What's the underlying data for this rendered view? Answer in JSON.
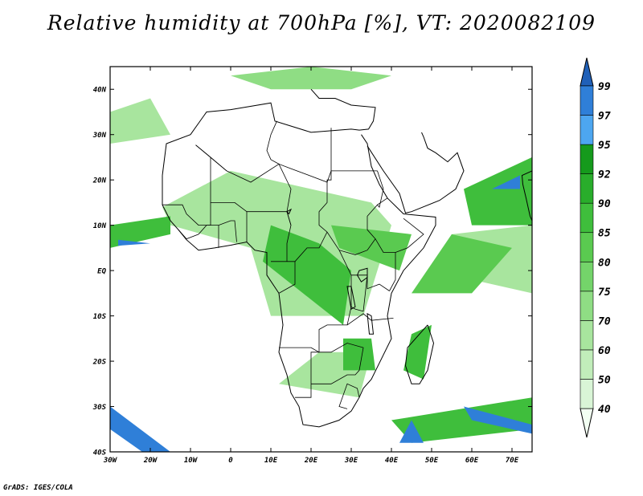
{
  "title": "Relative humidity at 700hPa [%], VT: 2020082109",
  "credit": "GrADS: IGES/COLA",
  "map": {
    "lon_range": [
      -30,
      75
    ],
    "lat_range": [
      -40,
      45
    ],
    "lat_ticks": [
      {
        "value": 40,
        "label": "40N"
      },
      {
        "value": 30,
        "label": "30N"
      },
      {
        "value": 20,
        "label": "20N"
      },
      {
        "value": 10,
        "label": "10N"
      },
      {
        "value": 0,
        "label": "EQ"
      },
      {
        "value": -10,
        "label": "10S"
      },
      {
        "value": -20,
        "label": "20S"
      },
      {
        "value": -30,
        "label": "30S"
      },
      {
        "value": -40,
        "label": "40S"
      }
    ],
    "lon_ticks": [
      {
        "value": -30,
        "label": "30W"
      },
      {
        "value": -20,
        "label": "20W"
      },
      {
        "value": -10,
        "label": "10W"
      },
      {
        "value": 0,
        "label": "0"
      },
      {
        "value": 10,
        "label": "10E"
      },
      {
        "value": 20,
        "label": "20E"
      },
      {
        "value": 30,
        "label": "30E"
      },
      {
        "value": 40,
        "label": "40E"
      },
      {
        "value": 50,
        "label": "50E"
      },
      {
        "value": 60,
        "label": "60E"
      },
      {
        "value": 70,
        "label": "70E"
      }
    ]
  },
  "colorbar": {
    "levels": [
      "40",
      "50",
      "60",
      "70",
      "75",
      "80",
      "85",
      "90",
      "92",
      "95",
      "97",
      "99"
    ],
    "colors": [
      "#f2fff2",
      "#d9f5d6",
      "#c1edba",
      "#a8e59e",
      "#8fdd84",
      "#74d46a",
      "#5aca50",
      "#3fbe3c",
      "#29ad2b",
      "#159a1c",
      "#4da6f0",
      "#2f7fd8",
      "#2060b8"
    ]
  },
  "humid_areas": [
    {
      "level": "60",
      "points": [
        [
          40,
          10
        ],
        [
          33,
          -10
        ],
        [
          10,
          -10
        ],
        [
          5,
          5
        ],
        [
          -15,
          10
        ],
        [
          -17,
          14
        ],
        [
          0,
          22
        ],
        [
          20,
          18
        ],
        [
          35,
          15
        ]
      ]
    },
    {
      "level": "60",
      "points": [
        [
          12,
          -25
        ],
        [
          32,
          -28
        ],
        [
          35,
          -18
        ],
        [
          22,
          -18
        ]
      ]
    },
    {
      "level": "60",
      "points": [
        [
          50,
          0
        ],
        [
          75,
          -5
        ],
        [
          75,
          10
        ],
        [
          55,
          8
        ]
      ]
    },
    {
      "level": "60",
      "points": [
        [
          -30,
          35
        ],
        [
          -20,
          38
        ],
        [
          -15,
          30
        ],
        [
          -30,
          28
        ]
      ]
    },
    {
      "level": "70",
      "points": [
        [
          0,
          43
        ],
        [
          20,
          45
        ],
        [
          40,
          43
        ],
        [
          30,
          40
        ],
        [
          10,
          40
        ]
      ]
    },
    {
      "level": "80",
      "points": [
        [
          45,
          -5
        ],
        [
          60,
          -5
        ],
        [
          70,
          5
        ],
        [
          55,
          8
        ]
      ]
    },
    {
      "level": "80",
      "points": [
        [
          25,
          10
        ],
        [
          45,
          8
        ],
        [
          42,
          0
        ],
        [
          27,
          5
        ]
      ]
    },
    {
      "level": "85",
      "points": [
        [
          10,
          10
        ],
        [
          22,
          6
        ],
        [
          30,
          0
        ],
        [
          28,
          -12
        ],
        [
          18,
          -5
        ],
        [
          8,
          2
        ]
      ]
    },
    {
      "level": "85",
      "points": [
        [
          -30,
          5
        ],
        [
          -15,
          8
        ],
        [
          -15,
          12
        ],
        [
          -30,
          10
        ]
      ]
    },
    {
      "level": "85",
      "points": [
        [
          28,
          -15
        ],
        [
          35,
          -15
        ],
        [
          36,
          -22
        ],
        [
          28,
          -22
        ]
      ]
    },
    {
      "level": "85",
      "points": [
        [
          45,
          -14
        ],
        [
          50,
          -12
        ],
        [
          48,
          -24
        ],
        [
          43,
          -22
        ]
      ]
    },
    {
      "level": "85",
      "points": [
        [
          58,
          18
        ],
        [
          75,
          25
        ],
        [
          75,
          10
        ],
        [
          60,
          10
        ]
      ]
    },
    {
      "level": "85",
      "points": [
        [
          40,
          -33
        ],
        [
          75,
          -28
        ],
        [
          75,
          -35
        ],
        [
          45,
          -38
        ]
      ]
    },
    {
      "level": "97",
      "points": [
        [
          -30,
          -30
        ],
        [
          -15,
          -40
        ],
        [
          -22,
          -40
        ],
        [
          -30,
          -35
        ]
      ]
    },
    {
      "level": "97",
      "points": [
        [
          58,
          -30
        ],
        [
          75,
          -34
        ],
        [
          75,
          -36
        ],
        [
          60,
          -33
        ]
      ]
    },
    {
      "level": "97",
      "points": [
        [
          65,
          18
        ],
        [
          72,
          21
        ],
        [
          72,
          18
        ]
      ]
    },
    {
      "level": "97",
      "points": [
        [
          -28,
          5.5
        ],
        [
          -20,
          6
        ],
        [
          -28,
          6.8
        ]
      ]
    },
    {
      "level": "97",
      "points": [
        [
          42,
          -38
        ],
        [
          45,
          -33
        ],
        [
          48,
          -38
        ]
      ]
    }
  ],
  "coastlines": [
    [
      [
        -17,
        21
      ],
      [
        -16,
        28
      ],
      [
        -10,
        30
      ],
      [
        -6,
        35
      ],
      [
        0,
        35.5
      ],
      [
        10,
        37
      ],
      [
        11,
        33
      ],
      [
        20,
        30.5
      ],
      [
        30,
        31.2
      ],
      [
        32,
        31
      ],
      [
        34.3,
        31.2
      ],
      [
        35.5,
        33
      ],
      [
        36,
        36
      ],
      [
        30,
        36.5
      ],
      [
        26,
        38
      ],
      [
        22,
        38
      ],
      [
        20,
        40
      ]
    ],
    [
      [
        32.5,
        30
      ],
      [
        34,
        28
      ],
      [
        35,
        23
      ],
      [
        37,
        19
      ],
      [
        39,
        16
      ],
      [
        43,
        12.5
      ],
      [
        51,
        11.8
      ],
      [
        51,
        10
      ],
      [
        48,
        5
      ],
      [
        43,
        0
      ],
      [
        40,
        -5
      ],
      [
        39,
        -10
      ],
      [
        40,
        -15
      ],
      [
        35,
        -24
      ],
      [
        33,
        -26
      ],
      [
        32,
        -28
      ],
      [
        30,
        -31
      ],
      [
        27,
        -33
      ],
      [
        22,
        -34.5
      ],
      [
        18,
        -34
      ],
      [
        17,
        -30
      ],
      [
        15,
        -27
      ],
      [
        14,
        -23
      ],
      [
        12,
        -18
      ],
      [
        13,
        -12
      ],
      [
        12,
        -5
      ],
      [
        9,
        -1
      ],
      [
        9,
        4
      ],
      [
        6,
        4.5
      ],
      [
        4,
        6.3
      ],
      [
        0,
        5.6
      ],
      [
        -4,
        5
      ],
      [
        -8,
        4.5
      ],
      [
        -11,
        6.8
      ],
      [
        -13,
        9
      ],
      [
        -15,
        11
      ],
      [
        -17,
        14.5
      ],
      [
        -17,
        21
      ]
    ],
    [
      [
        34,
        27.5
      ],
      [
        38,
        22
      ],
      [
        42,
        17
      ],
      [
        43.5,
        12.7
      ],
      [
        45,
        13
      ],
      [
        52,
        15.5
      ],
      [
        56,
        18
      ],
      [
        58,
        22
      ],
      [
        56.4,
        26
      ],
      [
        54,
        24
      ],
      [
        51,
        26
      ],
      [
        49,
        27
      ],
      [
        48,
        29.5
      ],
      [
        47.5,
        30.5
      ]
    ],
    [
      [
        49,
        -12
      ],
      [
        50.5,
        -16
      ],
      [
        49,
        -22
      ],
      [
        47,
        -25
      ],
      [
        45,
        -25
      ],
      [
        43.5,
        -21
      ],
      [
        44,
        -17
      ],
      [
        47,
        -14
      ],
      [
        49,
        -12
      ]
    ],
    [
      [
        75,
        22
      ],
      [
        72.5,
        21
      ],
      [
        72.7,
        19
      ],
      [
        73.5,
        16
      ],
      [
        74.5,
        12
      ],
      [
        75,
        11
      ]
    ]
  ],
  "borders": [
    [
      [
        -8.7,
        27.7
      ],
      [
        -1,
        22
      ],
      [
        5,
        19.5
      ],
      [
        12,
        23.5
      ],
      [
        15,
        22.5
      ],
      [
        24,
        19.5
      ],
      [
        24,
        20
      ],
      [
        25,
        20
      ],
      [
        25,
        22
      ],
      [
        36.5,
        22
      ]
    ],
    [
      [
        11.5,
        33
      ],
      [
        10,
        30
      ],
      [
        9,
        26.5
      ],
      [
        10,
        24.5
      ],
      [
        12,
        23.5
      ]
    ],
    [
      [
        25,
        31.5
      ],
      [
        25,
        22
      ],
      [
        24,
        19.5
      ],
      [
        24,
        15
      ],
      [
        22,
        13
      ],
      [
        22,
        10
      ],
      [
        24,
        8.5
      ],
      [
        27,
        4.5
      ],
      [
        31,
        3.5
      ],
      [
        34,
        4.5
      ],
      [
        36,
        7
      ],
      [
        38,
        4
      ],
      [
        41,
        4
      ],
      [
        41,
        -2
      ],
      [
        39.5,
        -4.5
      ]
    ],
    [
      [
        24,
        8.5
      ],
      [
        22,
        5
      ],
      [
        19,
        5
      ],
      [
        16,
        2
      ],
      [
        16,
        -3
      ],
      [
        12,
        -5
      ]
    ],
    [
      [
        16,
        2
      ],
      [
        14,
        2
      ],
      [
        11.5,
        2
      ],
      [
        10,
        2
      ]
    ],
    [
      [
        14,
        2
      ],
      [
        14,
        6
      ],
      [
        15,
        10
      ],
      [
        14,
        13
      ],
      [
        15,
        18
      ],
      [
        12,
        23.5
      ]
    ],
    [
      [
        4,
        6.3
      ],
      [
        4,
        13
      ],
      [
        14,
        13
      ],
      [
        15,
        10
      ]
    ],
    [
      [
        4,
        13
      ],
      [
        1,
        15
      ],
      [
        -5,
        15
      ],
      [
        -5,
        10
      ],
      [
        -8,
        10
      ],
      [
        -11,
        12.5
      ],
      [
        -12,
        14.5
      ],
      [
        -17,
        14.5
      ]
    ],
    [
      [
        -5,
        15
      ],
      [
        -5,
        25
      ],
      [
        -8.7,
        27.7
      ]
    ],
    [
      [
        -1,
        22
      ],
      [
        -5,
        25
      ]
    ],
    [
      [
        27,
        4.5
      ],
      [
        30,
        -1
      ],
      [
        30,
        -8
      ],
      [
        29,
        -12
      ],
      [
        24,
        -12
      ],
      [
        22,
        -13
      ],
      [
        22,
        -18
      ],
      [
        20,
        -18
      ],
      [
        20,
        -22
      ],
      [
        20,
        -28
      ],
      [
        16,
        -28
      ]
    ],
    [
      [
        12,
        -17
      ],
      [
        20,
        -17
      ],
      [
        22,
        -18
      ],
      [
        25,
        -18
      ],
      [
        29,
        -16
      ],
      [
        33,
        -17
      ],
      [
        32,
        -22
      ],
      [
        31,
        -23
      ],
      [
        29,
        -23
      ],
      [
        25,
        -25
      ],
      [
        20,
        -25
      ]
    ],
    [
      [
        30,
        -1
      ],
      [
        34,
        -1
      ],
      [
        34,
        -4
      ],
      [
        37,
        -3
      ],
      [
        39.5,
        -4.5
      ]
    ],
    [
      [
        29,
        -12
      ],
      [
        33,
        -9.5
      ],
      [
        35,
        -11
      ],
      [
        40.5,
        -10.5
      ]
    ],
    [
      [
        34,
        -1
      ],
      [
        33,
        -9
      ],
      [
        31,
        -8.5
      ],
      [
        30,
        -8
      ]
    ],
    [
      [
        36,
        7
      ],
      [
        34,
        9
      ],
      [
        34,
        12
      ],
      [
        36.5,
        14.5
      ],
      [
        39,
        16
      ]
    ],
    [
      [
        36.5,
        22
      ],
      [
        38,
        18
      ],
      [
        37,
        14
      ],
      [
        36.5,
        14.5
      ]
    ],
    [
      [
        41,
        4
      ],
      [
        44,
        5
      ],
      [
        48,
        8
      ],
      [
        43,
        11.5
      ]
    ],
    [
      [
        -13,
        9
      ],
      [
        -11,
        7
      ],
      [
        -8,
        8
      ],
      [
        -6,
        10
      ],
      [
        -3,
        10
      ],
      [
        0,
        11
      ],
      [
        1,
        11
      ],
      [
        1.5,
        6.3
      ]
    ],
    [
      [
        -3,
        10
      ],
      [
        -3,
        5
      ]
    ],
    [
      [
        32,
        -28
      ],
      [
        31.5,
        -26
      ],
      [
        29,
        -25
      ],
      [
        27,
        -30
      ],
      [
        29,
        -30.5
      ]
    ]
  ],
  "lakes": [
    [
      [
        32,
        0
      ],
      [
        34,
        0.5
      ],
      [
        34,
        -1.5
      ],
      [
        32.5,
        -2.5
      ],
      [
        31.5,
        -1
      ],
      [
        32,
        0
      ]
    ],
    [
      [
        29,
        -3.5
      ],
      [
        30,
        -3.5
      ],
      [
        31,
        -8
      ],
      [
        30,
        -8.5
      ],
      [
        29,
        -3.5
      ]
    ],
    [
      [
        34,
        -9.5
      ],
      [
        35,
        -10
      ],
      [
        35.5,
        -14
      ],
      [
        34.5,
        -14
      ],
      [
        34,
        -9.5
      ]
    ],
    [
      [
        14,
        13
      ],
      [
        15,
        13.5
      ],
      [
        14.5,
        12.5
      ],
      [
        14,
        13
      ]
    ]
  ]
}
